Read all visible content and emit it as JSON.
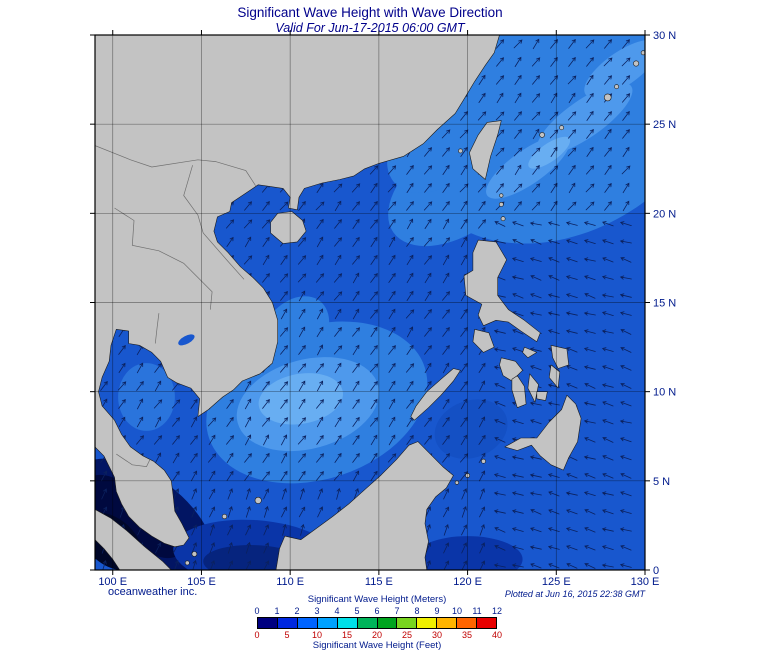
{
  "header": {
    "title": "Significant Wave Height with Wave Direction",
    "subtitle": "Valid For Jun-17-2015 06:00 GMT"
  },
  "footer": {
    "credit": "oceanweather inc.",
    "plotted": "Plotted at Jun 16, 2015 22:38 GMT"
  },
  "axes": {
    "lat_labels": [
      "30 N",
      "25 N",
      "20 N",
      "15 N",
      "10 N",
      "5 N",
      "0"
    ],
    "lat_values": [
      30,
      25,
      20,
      15,
      10,
      5,
      0
    ],
    "lon_labels": [
      "100 E",
      "105 E",
      "110 E",
      "115 E",
      "120 E",
      "125 E",
      "130 E"
    ],
    "lon_values": [
      100,
      105,
      110,
      115,
      120,
      125,
      130
    ],
    "label_color": "#001a8c"
  },
  "legend": {
    "meters_label": "Significant Wave Height (Meters)",
    "feet_label": "Significant Wave Height (Feet)",
    "meter_ticks": [
      "0",
      "1",
      "2",
      "3",
      "4",
      "5",
      "6",
      "7",
      "8",
      "9",
      "10",
      "11",
      "12"
    ],
    "feet_ticks": [
      "0",
      "5",
      "10",
      "15",
      "20",
      "25",
      "30",
      "35",
      "40"
    ],
    "meter_tick_color": "#001a8c",
    "feet_tick_color": "#c00000",
    "colors": [
      "#000080",
      "#0028e0",
      "#0064ff",
      "#00a2ff",
      "#00e0e8",
      "#00b45a",
      "#00a41e",
      "#78d41e",
      "#f0f000",
      "#ffb400",
      "#ff6400",
      "#e80000"
    ]
  },
  "map": {
    "land_color": "#c3c3c3",
    "coast_color": "#1c1c1c",
    "border_color": "#6f6f6f",
    "ocean_base": "#1857ce",
    "grid_color": "#000000",
    "arrow_color": "#0b215e",
    "shades": {
      "light": "#2f7fe0",
      "lighter": "#4e99ec",
      "core": "#68aef2",
      "gulf": "#2a74dc",
      "sulu": "#1450c4",
      "dark": "#0a35a8",
      "darker": "#06247e",
      "navy": "#021563",
      "deepnavy": "#00093f",
      "darkest": "#000728"
    },
    "arrow": {
      "spacing": 18,
      "length": 11
    }
  }
}
